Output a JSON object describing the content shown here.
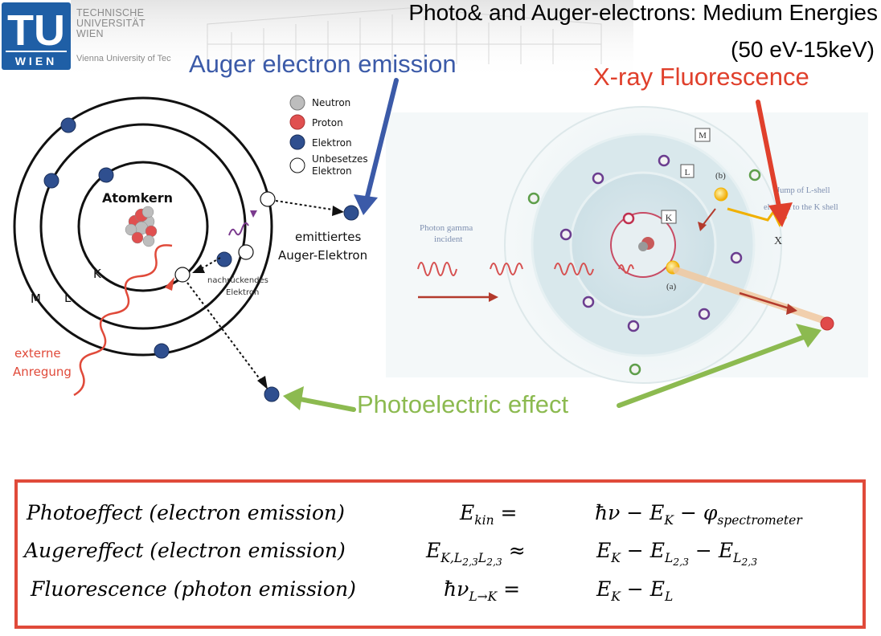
{
  "logo": {
    "letters": "TU",
    "wien": "WIEN",
    "line1": "TECHNISCHE",
    "line2": "UNIVERSITÄT",
    "line3": "WIEN",
    "line4": "Vienna University of Tec"
  },
  "title": {
    "line1": "Photo& and Auger-electrons: Medium Energies",
    "line2": "(50 eV-15keV)"
  },
  "callouts": {
    "auger": "Auger electron emission",
    "xrf": "X-ray Fluorescence",
    "photoelectric": "Photoelectric effect"
  },
  "left_diagram": {
    "legend": [
      "Neutron",
      "Proton",
      "Elektron",
      "Unbesetzes",
      "Elektron"
    ],
    "nucleus": "Atomkern",
    "shells": [
      "K",
      "L",
      "M"
    ],
    "emitted": [
      "emittiertes",
      "Auger-Elektron"
    ],
    "moving": [
      "nachrückendes",
      "Elektron"
    ],
    "excitation": [
      "externe",
      "Anregung"
    ]
  },
  "right_diagram": {
    "incident": [
      "Photon gamma",
      "incident"
    ],
    "shell_k": "K",
    "shell_l": "L",
    "shell_m": "M",
    "label_a": "(a)",
    "label_b": "(b)",
    "jump": [
      "Jump of L-shell",
      "electron to the K shell"
    ],
    "x_label": "X"
  },
  "equations": [
    {
      "name": "Photoeffect (electron emission)"
    },
    {
      "name": "Augereffect (electron emission)"
    },
    {
      "name": "Fluorescence (photon emission)"
    }
  ],
  "colors": {
    "tu_blue": "#1f5fa6",
    "auger_blue": "#3b5aa8",
    "xrf_red": "#e0402c",
    "photo_green": "#8cba50",
    "box_red": "#e04a3a",
    "electron": "#2f4f8f"
  }
}
